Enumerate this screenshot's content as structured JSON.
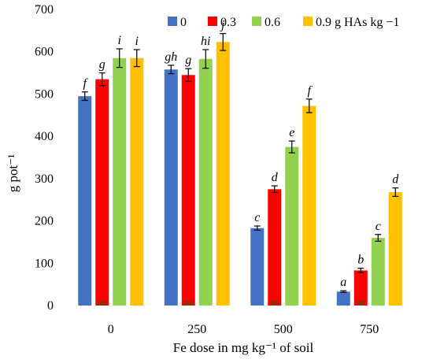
{
  "chart_data": {
    "type": "bar",
    "xlabel": "Fe dose in mg kg⁻¹ of soil",
    "ylabel": "g  pot⁻¹",
    "ylim": [
      0,
      700
    ],
    "yticks": [
      0,
      100,
      200,
      300,
      400,
      500,
      600,
      700
    ],
    "categories": [
      "0",
      "250",
      "500",
      "750"
    ],
    "legend_position": "top",
    "series": [
      {
        "name": "0",
        "color": "#4472C4",
        "values": [
          495,
          558,
          183,
          33
        ],
        "errors": [
          10,
          10,
          5,
          2
        ],
        "letters": [
          "f",
          "gh",
          "c",
          "a"
        ]
      },
      {
        "name": "0.3",
        "color": "#FF0000",
        "inner_color": "#9C2A00",
        "values": [
          535,
          545,
          275,
          83
        ],
        "errors": [
          15,
          15,
          8,
          5
        ],
        "letters": [
          "g",
          "g",
          "d",
          "b"
        ]
      },
      {
        "name": "0.6",
        "color": "#92D050",
        "values": [
          585,
          583,
          375,
          160
        ],
        "errors": [
          22,
          22,
          14,
          8
        ],
        "letters": [
          "i",
          "hi",
          "e",
          "c"
        ]
      },
      {
        "name": "0.9 g HAs kg −1",
        "color": "#FFC000",
        "values": [
          585,
          623,
          472,
          268
        ],
        "errors": [
          20,
          20,
          16,
          10
        ],
        "letters": [
          "i",
          "j",
          "f",
          "d"
        ]
      }
    ]
  }
}
